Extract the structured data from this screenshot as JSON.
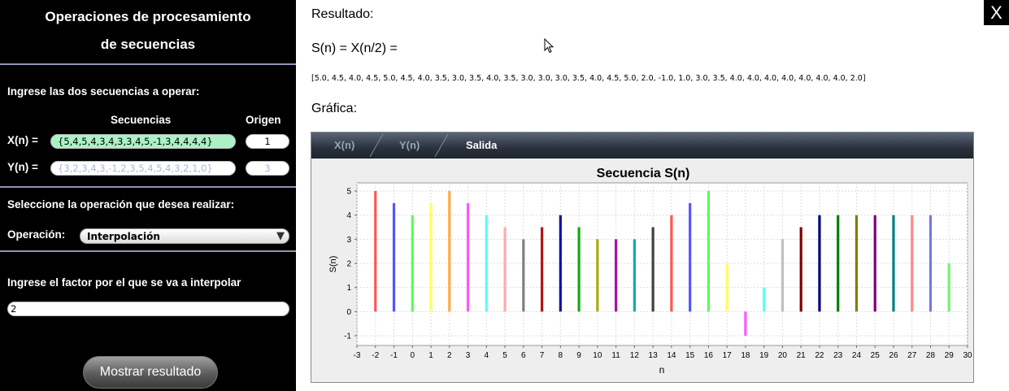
{
  "left_panel": {
    "title_line1": "Operaciones de procesamiento",
    "title_line2": "de secuencias",
    "ingrese_label": "Ingrese las dos secuencias a operar:",
    "secuencias_header": "Secuencias",
    "origen_header": "Origen",
    "x_label": "X(n) =",
    "x_value": "{5,4,5,4,3,4,3,3,4,5,-1,3,4,4,4,4}",
    "x_origin": "1",
    "y_label": "Y(n) =",
    "y_placeholder": "{3,2,3,4,3,-1,2,3,5,4,5,4,3,2,1,0}",
    "y_origin_placeholder": "3",
    "seleccione_label": "Seleccione la operación que desea realizar:",
    "operacion_label": "Operación:",
    "operacion_value": "Interpolación",
    "factor_label": "Ingrese el factor por el que se va a interpolar",
    "factor_value": "2",
    "show_button": "Mostrar resultado"
  },
  "result": {
    "resultado_label": "Resultado:",
    "equation": "S(n) =  X(n/2) =",
    "sequence_text": "[5.0, 4.5, 4.0, 4.5, 5.0, 4.5, 4.0, 3.5, 3.0, 3.5, 4.0, 3.5, 3.0, 3.0, 3.0, 3.5, 4.0, 4.5, 5.0, 2.0, -1.0, 1.0, 3.0, 3.5, 4.0, 4.0, 4.0, 4.0, 4.0, 4.0, 4.0, 2.0]",
    "grafica_label": "Gráfica:"
  },
  "close_button": "X",
  "tabs": [
    {
      "label": "X(n)"
    },
    {
      "label": "Y(n)"
    },
    {
      "label": "Salida"
    }
  ],
  "chart_data": {
    "type": "bar",
    "title": "Secuencia S(n)",
    "xlabel": "n",
    "ylabel": "S(n)",
    "xlim": [
      -3,
      30
    ],
    "ylim": [
      -1,
      5
    ],
    "grid": true,
    "x": [
      -2,
      -1,
      0,
      1,
      2,
      3,
      4,
      5,
      6,
      7,
      8,
      9,
      10,
      11,
      12,
      13,
      14,
      15,
      16,
      17,
      18,
      19,
      20,
      21,
      22,
      23,
      24,
      25,
      26,
      27,
      28,
      29
    ],
    "values": [
      5.0,
      4.5,
      4.0,
      4.5,
      5.0,
      4.5,
      4.0,
      3.5,
      3.0,
      3.5,
      4.0,
      3.5,
      3.0,
      3.0,
      3.0,
      3.5,
      4.0,
      4.5,
      5.0,
      2.0,
      -1.0,
      1.0,
      3.0,
      3.5,
      4.0,
      4.0,
      4.0,
      4.0,
      4.0,
      4.0,
      4.0,
      2.0
    ],
    "colors": [
      "#ff5555",
      "#5555ff",
      "#55ff55",
      "#ffff55",
      "#ffaa44",
      "#ff55ff",
      "#55ffff",
      "#ffaaaa",
      "#808080",
      "#bb1111",
      "#1111aa",
      "#11aa11",
      "#aaaa11",
      "#aa11aa",
      "#11aaaa",
      "#404040",
      "#ff5555",
      "#5555ff",
      "#55ff55",
      "#ffff55",
      "#ff55ff",
      "#55ffff",
      "#c0c0c0",
      "#800000",
      "#000080",
      "#008000",
      "#808000",
      "#800080",
      "#008080",
      "#ff8888",
      "#7777ee",
      "#77ee77"
    ],
    "x_ticks": [
      -3,
      -2,
      -1,
      0,
      1,
      2,
      3,
      4,
      5,
      6,
      7,
      8,
      9,
      10,
      11,
      12,
      13,
      14,
      15,
      16,
      17,
      18,
      19,
      20,
      21,
      22,
      23,
      24,
      25,
      26,
      27,
      28,
      29,
      30
    ],
    "y_ticks": [
      -1,
      0,
      1,
      2,
      3,
      4,
      5
    ]
  }
}
